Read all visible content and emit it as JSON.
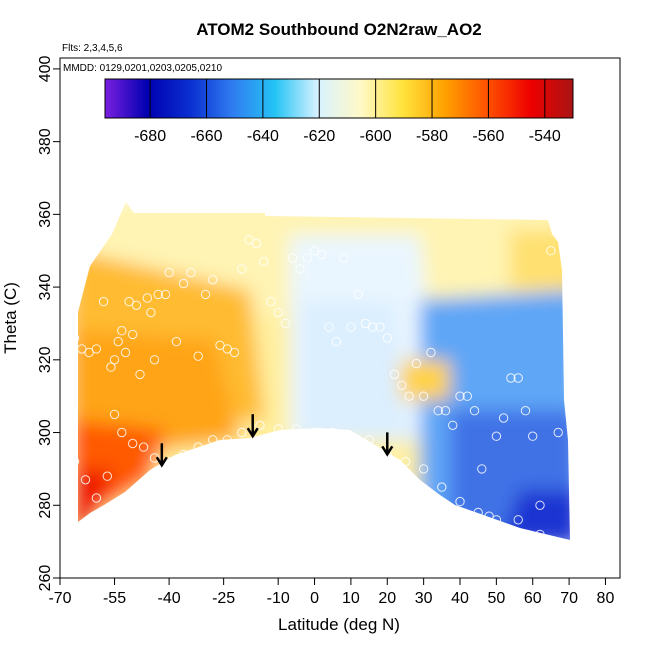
{
  "chart_data": {
    "type": "heatmap",
    "title": "ATOM2 Southbound O2N2raw_AO2",
    "flights_label": "Flts: 2,3,4,5,6",
    "dates_label": "MMDD: 0129,0201,0203,0205,0210",
    "xlabel": "Latitude (deg N)",
    "ylabel": "Theta (C)",
    "xlim": [
      -70,
      84
    ],
    "ylim": [
      260,
      403
    ],
    "x_ticks": [
      -70,
      -55,
      -40,
      -25,
      -10,
      0,
      10,
      20,
      30,
      40,
      50,
      60,
      70,
      80
    ],
    "y_ticks": [
      260,
      280,
      300,
      320,
      340,
      360,
      380,
      400
    ],
    "colorbar": {
      "min": -696,
      "max": -530,
      "ticks": [
        -680,
        -660,
        -640,
        -620,
        -600,
        -580,
        -560,
        -540
      ],
      "colors": [
        "#7b1fe0",
        "#0000b0",
        "#0a2fd0",
        "#2f7cf0",
        "#25c4f5",
        "#d7f2ff",
        "#fff9c8",
        "#ffe33c",
        "#ffa000",
        "#ff5000",
        "#ee0000",
        "#aa1414"
      ]
    },
    "arrows": [
      {
        "lat": -42,
        "theta": 291
      },
      {
        "lat": -17,
        "theta": 299
      },
      {
        "lat": 20,
        "theta": 294
      }
    ],
    "field_regions": [
      {
        "region": "southern high latitudes, low theta",
        "value": -558
      },
      {
        "region": "southern mid latitudes",
        "value": -582
      },
      {
        "region": "upper levels",
        "value": -597
      },
      {
        "region": "tropics",
        "value": -608
      },
      {
        "region": "northern mid latitudes",
        "value": -625
      },
      {
        "region": "northern high latitudes, low theta",
        "value": -660
      }
    ],
    "grid": false,
    "legend": "colorbar, top"
  }
}
